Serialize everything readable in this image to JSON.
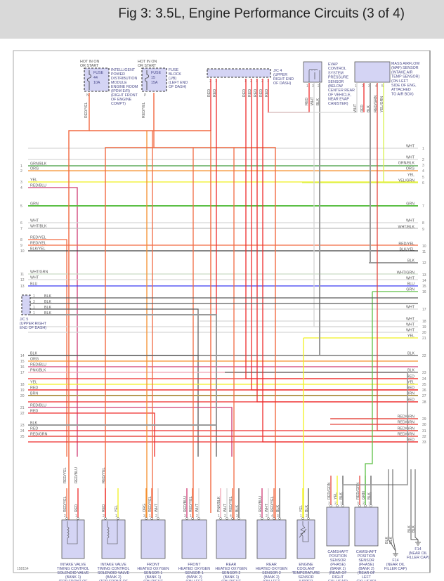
{
  "title": "Fig 3: 3.5L, Engine Performance Circuits (3 of 4)",
  "wire_colors": {
    "RED": "#ee2b2b",
    "ORG": "#f5902f",
    "YEL": "#f0f020",
    "GRN": "#5cbf45",
    "WHT": "#d6d6d6",
    "BLK": "#5a5a5a",
    "BLU": "#3a3af0",
    "BRN": "#b39a55",
    "PNK/BLK": "#f0a4b4",
    "RED/YEL": "#f26a42",
    "RED/BLU": "#cf3a72",
    "RED/GRN": "#e5473f",
    "GRN/BLK": "#3f9a3a",
    "WHT/BLK": "#bdbdbd",
    "BLK/YEL": "#3f3f3f",
    "WHT/GRN": "#c9dcc5",
    "YEL/GRN": "#d8f050",
    "BLK_THICK": "#9a9a9a"
  },
  "left_rows": [
    {
      "n": "1",
      "label": "GRN/BLK"
    },
    {
      "n": "2",
      "label": "ORG"
    },
    {
      "n": "3",
      "label": "YEL"
    },
    {
      "n": "4",
      "label": "RED/BLU"
    },
    {
      "n": "5",
      "label": "GRN"
    },
    {
      "n": "6",
      "label": "WHT"
    },
    {
      "n": "7",
      "label": "WHT/BLK"
    },
    {
      "n": "8",
      "label": "RED/YEL"
    },
    {
      "n": "9",
      "label": "RED/YEL"
    },
    {
      "n": "10",
      "label": "BLK/YEL"
    },
    {
      "n": "11",
      "label": "WHT/GRN"
    },
    {
      "n": "12",
      "label": "WHT"
    },
    {
      "n": "13",
      "label": "BLU"
    },
    {
      "n": "14",
      "label": "BLK"
    },
    {
      "n": "15",
      "label": "ORG"
    },
    {
      "n": "16",
      "label": "RED/BLU"
    },
    {
      "n": "17",
      "label": "PNK/BLK"
    },
    {
      "n": "18",
      "label": "YEL"
    },
    {
      "n": "19",
      "label": "RED"
    },
    {
      "n": "20",
      "label": "BRN"
    },
    {
      "n": "21",
      "label": "RED/BLU"
    },
    {
      "n": "22",
      "label": "RED"
    },
    {
      "n": "23",
      "label": "BLK"
    },
    {
      "n": "24",
      "label": "RED"
    },
    {
      "n": "25",
      "label": "RED/GRN"
    }
  ],
  "right_rows": [
    {
      "n": "1",
      "label": "WHT"
    },
    {
      "n": "2",
      "label": "WHT"
    },
    {
      "n": "3",
      "label": "GRN/BLK"
    },
    {
      "n": "4",
      "label": "ORG"
    },
    {
      "n": "5",
      "label": "YEL"
    },
    {
      "n": "6",
      "label": "YEL/GRN"
    },
    {
      "n": "7",
      "label": "GRN"
    },
    {
      "n": "8",
      "label": "WHT"
    },
    {
      "n": "9",
      "label": "WHT/BLK"
    },
    {
      "n": "10",
      "label": "RED/YEL"
    },
    {
      "n": "11",
      "label": "BLK/YEL"
    },
    {
      "n": "12",
      "label": "BLK"
    },
    {
      "n": "13",
      "label": "WHT/GRN"
    },
    {
      "n": "14",
      "label": "WHT"
    },
    {
      "n": "15",
      "label": "BLU"
    },
    {
      "n": "16",
      "label": "GRN"
    },
    {
      "n": "17",
      "label": "WHT"
    },
    {
      "n": "18",
      "label": "WHT"
    },
    {
      "n": "19",
      "label": "WHT"
    },
    {
      "n": "20",
      "label": "WHT"
    },
    {
      "n": "21",
      "label": "YEL"
    },
    {
      "n": "22",
      "label": "BLK"
    },
    {
      "n": "23",
      "label": "BLK"
    },
    {
      "n": "24",
      "label": "RED"
    },
    {
      "n": "25",
      "label": "YEL"
    },
    {
      "n": "26",
      "label": "RED"
    },
    {
      "n": "27",
      "label": "BRN"
    },
    {
      "n": "28",
      "label": "RED"
    },
    {
      "n": "29",
      "label": "RED/GRN"
    },
    {
      "n": "30",
      "label": "RED/GRN"
    },
    {
      "n": "31",
      "label": "RED/GRN"
    },
    {
      "n": "32",
      "label": "RED/GRN"
    },
    {
      "n": "33",
      "label": "RED"
    }
  ],
  "top": {
    "fuse1": {
      "hot": [
        "HOT IN ON",
        "OR START"
      ],
      "fuse": [
        "FUSE",
        "44",
        "10A"
      ],
      "desc": [
        "INTELLIGENT",
        "POWER",
        "DISTRIBUTION",
        "MODULE",
        "ENGINE ROOM",
        "(IPDM E/R)",
        "(RIGHT FRONT",
        "OF ENGINE",
        "COMPT)"
      ],
      "pin": "N",
      "wire": "RED/YEL"
    },
    "fuse2": {
      "hot": [
        "HOT IN ON",
        "OR START"
      ],
      "fuse": [
        "FUSE",
        "15",
        "15A"
      ],
      "desc": [
        "FUSE",
        "BLOCK",
        "(J/B)",
        "(LEFT END",
        "OF DASH)"
      ],
      "pin": "P",
      "wire": "RED/YEL"
    },
    "jc4": {
      "desc": [
        "J/C 4",
        "(UPPER",
        "RIGHT END",
        "OF DASH)"
      ],
      "pins": [
        {
          "n": "2",
          "wire": "RED"
        },
        {
          "n": "1",
          "wire": "RED"
        },
        {
          "n": "1",
          "wire": "RED"
        },
        {
          "n": "2",
          "wire": "RED"
        },
        {
          "n": "1",
          "wire": "RED"
        },
        {
          "n": "2",
          "wire": "RED"
        },
        {
          "n": "1",
          "wire": "RED"
        }
      ]
    },
    "evap": {
      "desc": [
        "EVAP",
        "CONTROL",
        "SYSTEM",
        "PRESSURE",
        "SENSOR",
        "(BELOW",
        "CENTER REAR",
        "OF VEHICLE,",
        "NEAR EVAP",
        "CANISTER)"
      ],
      "pins": [
        {
          "n": "1",
          "wire": "RED"
        },
        {
          "n": "3",
          "wire": "WHT"
        },
        {
          "n": "2",
          "wire": "BLK"
        }
      ]
    },
    "maf": {
      "desc": [
        "MASS AIRFLOW",
        "(MAF) SENSOR",
        "(INTAKE AIR",
        "TEMP SENSOR)",
        "(ON LEFT",
        "SIDE OF ENG,",
        "ATTACHED",
        "TO AIR BOX)"
      ],
      "pins": [
        {
          "n": "1",
          "wire": "WHT"
        },
        {
          "n": "2",
          "wire": "RED"
        },
        {
          "n": "3",
          "wire": "BLK"
        },
        {
          "n": "4",
          "wire": "RED/GRN"
        },
        {
          "n": "5",
          "wire": "YEL/GRN"
        }
      ]
    }
  },
  "jc5": {
    "desc": [
      "J/C 5",
      "(UPPER RIGHT",
      "END OF DASH)"
    ],
    "pins": [
      {
        "n": "1",
        "wire": "BLK"
      },
      {
        "n": "3",
        "wire": "BLK"
      },
      {
        "n": "1",
        "wire": "BLK"
      },
      {
        "n": "1",
        "wire": "BLK"
      }
    ]
  },
  "components": [
    {
      "desc": [
        "INTAKE VALVE",
        "TIMING CONTROL",
        "SOLENOID VALVE",
        "(BANK 1)",
        "(TOP FRONT OF",
        "RIGHT CYLINDER",
        "HEAD)"
      ],
      "pins": [
        {
          "n": "2",
          "wire": "RED/YEL"
        },
        {
          "n": "1",
          "wire": "RED"
        }
      ],
      "upper": [
        "RED/YEL",
        "RED/BLU"
      ]
    },
    {
      "desc": [
        "INTAKE VALVE",
        "TIMING CONTROL",
        "SOLENOID VALVE",
        "(BANK 2)",
        "(TOP FRONT OF",
        "LEFT CYLINDER",
        "HEAD)"
      ],
      "pins": [
        {
          "n": "2",
          "wire": "RED"
        },
        {
          "n": "1",
          "wire": "YEL"
        }
      ],
      "upper": [
        "RED/YEL"
      ]
    },
    {
      "desc": [
        "FRONT",
        "HEATED OXYGEN",
        "SENSOR 1",
        "(BANK 1)",
        "(ON RIGHT",
        "EXHAUST",
        "MANIFOLD)"
      ],
      "pins": [
        {
          "n": "3",
          "wire": "ORG"
        },
        {
          "n": "1",
          "wire": "RED/YEL"
        },
        {
          "n": "2",
          "wire": "WHT"
        }
      ]
    },
    {
      "desc": [
        "FRONT",
        "HEATED OXYGEN",
        "SENSOR 1",
        "(BANK 2)",
        "(ON LEFT",
        "EXHAUST",
        "MANIFOLD)"
      ],
      "pins": [
        {
          "n": "3",
          "wire": "RED/BLU"
        },
        {
          "n": "1",
          "wire": "RED/YEL"
        },
        {
          "n": "2",
          "wire": "WHT"
        }
      ]
    },
    {
      "desc": [
        "REAR",
        "HEATED OXYGEN",
        "SENSOR 2",
        "(BANK 1)",
        "(ON RIGHT",
        "EXHAUST",
        "DOWNPIPE)"
      ],
      "pins": [
        {
          "n": "1",
          "wire": "PNK/BLK"
        },
        {
          "n": "2",
          "wire": "WHT"
        },
        {
          "n": "4",
          "wire": "RED/YEL"
        },
        {
          "n": "3",
          "wire": "BLK"
        }
      ]
    },
    {
      "desc": [
        "REAR",
        "HEATED OXYGEN",
        "SENSOR 2",
        "(BANK 2)",
        "(ON LEFT",
        "EXHAUST",
        "DOWNPIPE)"
      ],
      "pins": [
        {
          "n": "1",
          "wire": "RED/BLU"
        },
        {
          "n": "2",
          "wire": "WHT"
        },
        {
          "n": "4",
          "wire": "RED/YEL"
        },
        {
          "n": "3",
          "wire": "BLK"
        }
      ]
    },
    {
      "desc": [
        "ENGINE",
        "COOLANT",
        "TEMPERATURE",
        "SENSOR",
        "(UPPER",
        "REAR OF",
        "ENGINE)"
      ],
      "pins": [
        {
          "n": "1",
          "wire": "YEL"
        },
        {
          "n": "2",
          "wire": "BLK"
        }
      ]
    },
    {
      "desc": [
        "CAMSHAFT",
        "POSITION",
        "SENSOR",
        "(PHASE)",
        "(BANK 1)",
        "(REAR OF",
        "RIGHT",
        "CYL HEAD)"
      ],
      "pins": [
        {
          "n": "3",
          "wire": "RED/GRN"
        },
        {
          "n": "2",
          "wire": "YEL"
        },
        {
          "n": "1",
          "wire": "BLK"
        }
      ]
    },
    {
      "desc": [
        "CAMSHAFT",
        "POSITION",
        "SENSOR",
        "(PHASE)",
        "(BANK 2)",
        "(REAR OF",
        "LEFT",
        "CYL HEAD)"
      ],
      "pins": [
        {
          "n": "3",
          "wire": "RED/GRN"
        },
        {
          "n": "2",
          "wire": "GRN"
        },
        {
          "n": "1",
          "wire": "BLK"
        }
      ]
    }
  ],
  "grounds": [
    {
      "label": [
        "F14",
        "(NEAR OIL",
        "FILLER CAP)"
      ],
      "wires": [
        "BLK",
        "BLK"
      ]
    },
    {
      "label": [
        "F14",
        "(NEAR OIL",
        "FILLER CAP)"
      ],
      "wires": [
        "BLK",
        "BLK"
      ]
    }
  ],
  "footer_code": "158154"
}
